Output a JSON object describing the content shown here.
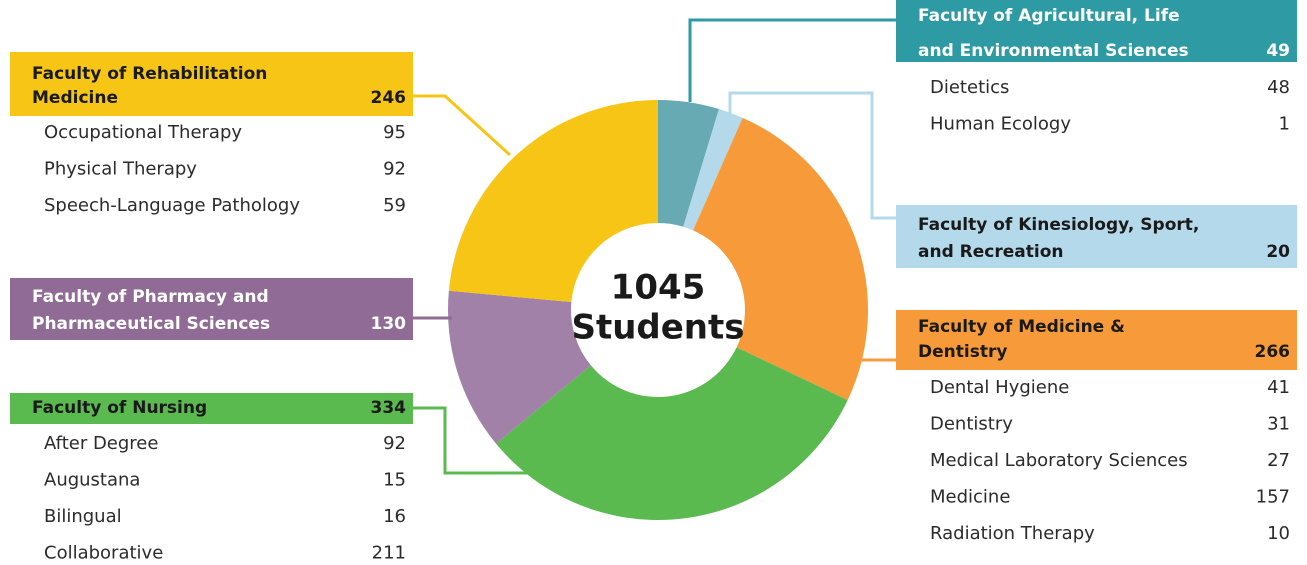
{
  "chart_data": {
    "type": "pie",
    "donut": true,
    "center_value": 1045,
    "center_label": "Students",
    "categories": [
      [
        "Faculty of Agricultural, Life",
        "and Environmental Sciences"
      ],
      [
        "Faculty of Kinesiology, Sport,",
        "and Recreation"
      ],
      [
        "Faculty of Medicine &",
        "Dentistry"
      ],
      [
        "Faculty of Nursing"
      ],
      [
        "Faculty of Pharmacy and",
        "Pharmaceutical Sciences"
      ],
      [
        "Faculty of Rehabilitation",
        "Medicine"
      ]
    ],
    "values": [
      49,
      20,
      266,
      334,
      130,
      246
    ],
    "colors": [
      "#67aab3",
      "#b4d9ea",
      "#f79b3a",
      "#5ab94f",
      "#a281a8",
      "#f6c516"
    ],
    "box_colors": [
      "#2e9aa3",
      "#b4d9ea",
      "#f79b3a",
      "#5ab94f",
      "#8f6b96",
      "#f6c516"
    ],
    "label_colors": [
      "#ffffff",
      "#1a1a1a",
      "#1a1a1a",
      "#1a1a1a",
      "#ffffff",
      "#1a1a1a"
    ],
    "breakdown": [
      [
        {
          "label": "Dietetics",
          "value": 48
        },
        {
          "label": "Human Ecology",
          "value": 1
        }
      ],
      [],
      [
        {
          "label": "Dental Hygiene",
          "value": 41
        },
        {
          "label": "Dentistry",
          "value": 31
        },
        {
          "label": "Medical Laboratory Sciences",
          "value": 27
        },
        {
          "label": "Medicine",
          "value": 157
        },
        {
          "label": "Radiation Therapy",
          "value": 10
        }
      ],
      [
        {
          "label": "After Degree",
          "value": 92
        },
        {
          "label": "Augustana",
          "value": 15
        },
        {
          "label": "Bilingual",
          "value": 16
        },
        {
          "label": "Collaborative",
          "value": 211
        }
      ],
      [],
      [
        {
          "label": "Occupational Therapy",
          "value": 95
        },
        {
          "label": "Physical Therapy",
          "value": 92
        },
        {
          "label": "Speech-Language Pathology",
          "value": 59
        }
      ]
    ]
  }
}
